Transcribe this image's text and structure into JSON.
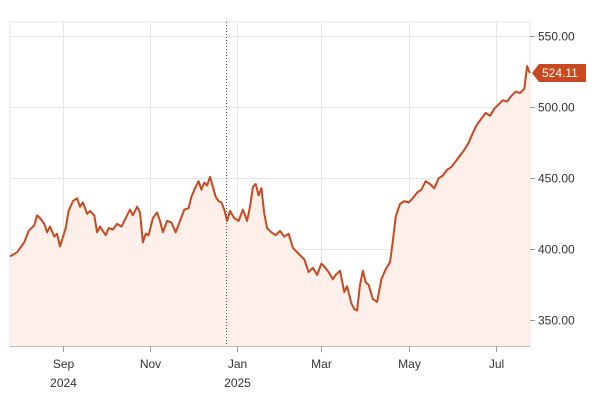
{
  "chart_data": {
    "type": "area",
    "title": "",
    "xlabel": "",
    "ylabel": "",
    "ylim": [
      332,
      560
    ],
    "xlim": [
      "2024-07-26",
      "2025-07-25"
    ],
    "y_ticks": [
      {
        "value": 550,
        "label": "550.00"
      },
      {
        "value": 500,
        "label": "500.00"
      },
      {
        "value": 450,
        "label": "450.00"
      },
      {
        "value": 400,
        "label": "400.00"
      },
      {
        "value": 350,
        "label": "350.00"
      }
    ],
    "x_ticks": [
      {
        "date": "2024-09-01",
        "label": "Sep",
        "sublabel": "2024"
      },
      {
        "date": "2024-11-01",
        "label": "Nov",
        "sublabel": ""
      },
      {
        "date": "2025-01-01",
        "label": "Jan",
        "sublabel": "2025"
      },
      {
        "date": "2025-03-01",
        "label": "Mar",
        "sublabel": ""
      },
      {
        "date": "2025-05-01",
        "label": "May",
        "sublabel": ""
      },
      {
        "date": "2025-07-01",
        "label": "Jul",
        "sublabel": ""
      }
    ],
    "gridlines": true,
    "crosshair_date": "2024-12-24",
    "last_price_label": "524.11",
    "last_value": 524.11,
    "colors": {
      "line": "#c8491f",
      "area": "#fdf0ea",
      "grid": "#e6e6e6",
      "badge": "#c8491f",
      "crosshair": "#555555"
    },
    "series": [
      {
        "points": [
          [
            "2024-07-26",
            395
          ],
          [
            "2024-07-31",
            398
          ],
          [
            "2024-08-05",
            405
          ],
          [
            "2024-08-08",
            413
          ],
          [
            "2024-08-12",
            417
          ],
          [
            "2024-08-14",
            424
          ],
          [
            "2024-08-16",
            422
          ],
          [
            "2024-08-19",
            418
          ],
          [
            "2024-08-21",
            412
          ],
          [
            "2024-08-23",
            416
          ],
          [
            "2024-08-26",
            409
          ],
          [
            "2024-08-28",
            411
          ],
          [
            "2024-08-30",
            402
          ],
          [
            "2024-09-03",
            415
          ],
          [
            "2024-09-05",
            427
          ],
          [
            "2024-09-08",
            434
          ],
          [
            "2024-09-11",
            436
          ],
          [
            "2024-09-13",
            430
          ],
          [
            "2024-09-15",
            433
          ],
          [
            "2024-09-18",
            425
          ],
          [
            "2024-09-20",
            427
          ],
          [
            "2024-09-23",
            424
          ],
          [
            "2024-09-25",
            412
          ],
          [
            "2024-09-27",
            416
          ],
          [
            "2024-10-01",
            410
          ],
          [
            "2024-10-03",
            415
          ],
          [
            "2024-10-06",
            414
          ],
          [
            "2024-10-09",
            418
          ],
          [
            "2024-10-12",
            416
          ],
          [
            "2024-10-15",
            422
          ],
          [
            "2024-10-18",
            428
          ],
          [
            "2024-10-20",
            424
          ],
          [
            "2024-10-23",
            430
          ],
          [
            "2024-10-25",
            426
          ],
          [
            "2024-10-27",
            405
          ],
          [
            "2024-10-29",
            411
          ],
          [
            "2024-10-31",
            410
          ],
          [
            "2024-11-03",
            422
          ],
          [
            "2024-11-06",
            426
          ],
          [
            "2024-11-08",
            420
          ],
          [
            "2024-11-10",
            412
          ],
          [
            "2024-11-13",
            420
          ],
          [
            "2024-11-16",
            419
          ],
          [
            "2024-11-19",
            412
          ],
          [
            "2024-11-22",
            420
          ],
          [
            "2024-11-25",
            428
          ],
          [
            "2024-11-28",
            429
          ],
          [
            "2024-11-30",
            437
          ],
          [
            "2024-12-03",
            444
          ],
          [
            "2024-12-05",
            448
          ],
          [
            "2024-12-07",
            442
          ],
          [
            "2024-12-09",
            447
          ],
          [
            "2024-12-11",
            445
          ],
          [
            "2024-12-13",
            451
          ],
          [
            "2024-12-15",
            444
          ],
          [
            "2024-12-17",
            437
          ],
          [
            "2024-12-19",
            434
          ],
          [
            "2024-12-21",
            433
          ],
          [
            "2024-12-23",
            428
          ],
          [
            "2024-12-25",
            420
          ],
          [
            "2024-12-27",
            427
          ],
          [
            "2024-12-30",
            422
          ],
          [
            "2025-01-02",
            420
          ],
          [
            "2025-01-05",
            428
          ],
          [
            "2025-01-08",
            420
          ],
          [
            "2025-01-10",
            430
          ],
          [
            "2025-01-12",
            444
          ],
          [
            "2025-01-14",
            446
          ],
          [
            "2025-01-16",
            438
          ],
          [
            "2025-01-18",
            443
          ],
          [
            "2025-01-20",
            425
          ],
          [
            "2025-01-22",
            415
          ],
          [
            "2025-01-25",
            412
          ],
          [
            "2025-01-28",
            410
          ],
          [
            "2025-01-31",
            413
          ],
          [
            "2025-02-03",
            409
          ],
          [
            "2025-02-06",
            411
          ],
          [
            "2025-02-09",
            401
          ],
          [
            "2025-02-12",
            398
          ],
          [
            "2025-02-15",
            395
          ],
          [
            "2025-02-17",
            393
          ],
          [
            "2025-02-20",
            384
          ],
          [
            "2025-02-23",
            387
          ],
          [
            "2025-02-26",
            382
          ],
          [
            "2025-03-01",
            390
          ],
          [
            "2025-03-03",
            388
          ],
          [
            "2025-03-06",
            384
          ],
          [
            "2025-03-09",
            379
          ],
          [
            "2025-03-11",
            382
          ],
          [
            "2025-03-14",
            385
          ],
          [
            "2025-03-17",
            370
          ],
          [
            "2025-03-19",
            374
          ],
          [
            "2025-03-22",
            362
          ],
          [
            "2025-03-24",
            358
          ],
          [
            "2025-03-26",
            357
          ],
          [
            "2025-03-28",
            375
          ],
          [
            "2025-03-30",
            385
          ],
          [
            "2025-04-01",
            377
          ],
          [
            "2025-04-03",
            375
          ],
          [
            "2025-04-06",
            365
          ],
          [
            "2025-04-09",
            363
          ],
          [
            "2025-04-12",
            379
          ],
          [
            "2025-04-15",
            386
          ],
          [
            "2025-04-18",
            391
          ],
          [
            "2025-04-20",
            406
          ],
          [
            "2025-04-22",
            423
          ],
          [
            "2025-04-25",
            432
          ],
          [
            "2025-04-28",
            434
          ],
          [
            "2025-05-01",
            433
          ],
          [
            "2025-05-04",
            436
          ],
          [
            "2025-05-07",
            440
          ],
          [
            "2025-05-10",
            442
          ],
          [
            "2025-05-13",
            448
          ],
          [
            "2025-05-16",
            446
          ],
          [
            "2025-05-19",
            443
          ],
          [
            "2025-05-22",
            450
          ],
          [
            "2025-05-25",
            452
          ],
          [
            "2025-05-28",
            456
          ],
          [
            "2025-05-31",
            458
          ],
          [
            "2025-06-03",
            462
          ],
          [
            "2025-06-06",
            466
          ],
          [
            "2025-06-09",
            470
          ],
          [
            "2025-06-12",
            475
          ],
          [
            "2025-06-15",
            482
          ],
          [
            "2025-06-18",
            488
          ],
          [
            "2025-06-21",
            492
          ],
          [
            "2025-06-24",
            496
          ],
          [
            "2025-06-27",
            494
          ],
          [
            "2025-06-30",
            499
          ],
          [
            "2025-07-03",
            502
          ],
          [
            "2025-07-06",
            505
          ],
          [
            "2025-07-09",
            504
          ],
          [
            "2025-07-12",
            508
          ],
          [
            "2025-07-15",
            511
          ],
          [
            "2025-07-18",
            510
          ],
          [
            "2025-07-21",
            513
          ],
          [
            "2025-07-23",
            529
          ],
          [
            "2025-07-24",
            526
          ],
          [
            "2025-07-25",
            524.11
          ]
        ]
      }
    ]
  }
}
